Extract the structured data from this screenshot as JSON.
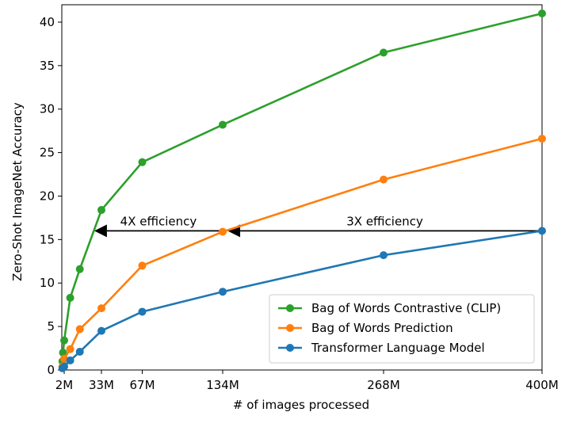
{
  "chart_data": {
    "type": "line",
    "title": "",
    "xlabel": "# of images processed",
    "ylabel": "Zero-Shot ImageNet Accuracy",
    "xlim": [
      0,
      400
    ],
    "ylim": [
      0,
      42
    ],
    "x_ticks": [
      {
        "value": 2,
        "label": "2M"
      },
      {
        "value": 33,
        "label": "33M"
      },
      {
        "value": 67,
        "label": "67M"
      },
      {
        "value": 134,
        "label": "134M"
      },
      {
        "value": 268,
        "label": "268M"
      },
      {
        "value": 400,
        "label": "400M"
      }
    ],
    "y_ticks": [
      0,
      5,
      10,
      15,
      20,
      25,
      30,
      35,
      40
    ],
    "grid": false,
    "legend_position": "bottom-right",
    "series": [
      {
        "name": "Bag of Words Contrastive (CLIP)",
        "color": "#2ca02c",
        "x": [
          0.5,
          1,
          2,
          7,
          15,
          33,
          67,
          134,
          268,
          400
        ],
        "y": [
          1.0,
          2.0,
          3.4,
          8.3,
          11.6,
          18.4,
          23.9,
          28.2,
          36.5,
          41.0
        ]
      },
      {
        "name": "Bag of Words Prediction",
        "color": "#ff7f0e",
        "x": [
          0.5,
          2,
          7,
          15,
          33,
          67,
          134,
          268,
          400
        ],
        "y": [
          0.4,
          1.3,
          2.4,
          4.7,
          7.1,
          12.0,
          15.9,
          21.9,
          26.6
        ]
      },
      {
        "name": "Transformer Language Model",
        "color": "#1f77b4",
        "x": [
          0.5,
          2,
          7,
          15,
          33,
          67,
          134,
          268,
          400
        ],
        "y": [
          0.2,
          0.4,
          1.1,
          2.1,
          4.5,
          6.7,
          9.0,
          13.2,
          16.0
        ]
      }
    ],
    "annotations": [
      {
        "text": "4X efficiency",
        "from_x": 134,
        "to_x": 27,
        "y": 16.0
      },
      {
        "text": "3X efficiency",
        "from_x": 400,
        "to_x": 138,
        "y": 16.0
      }
    ]
  }
}
